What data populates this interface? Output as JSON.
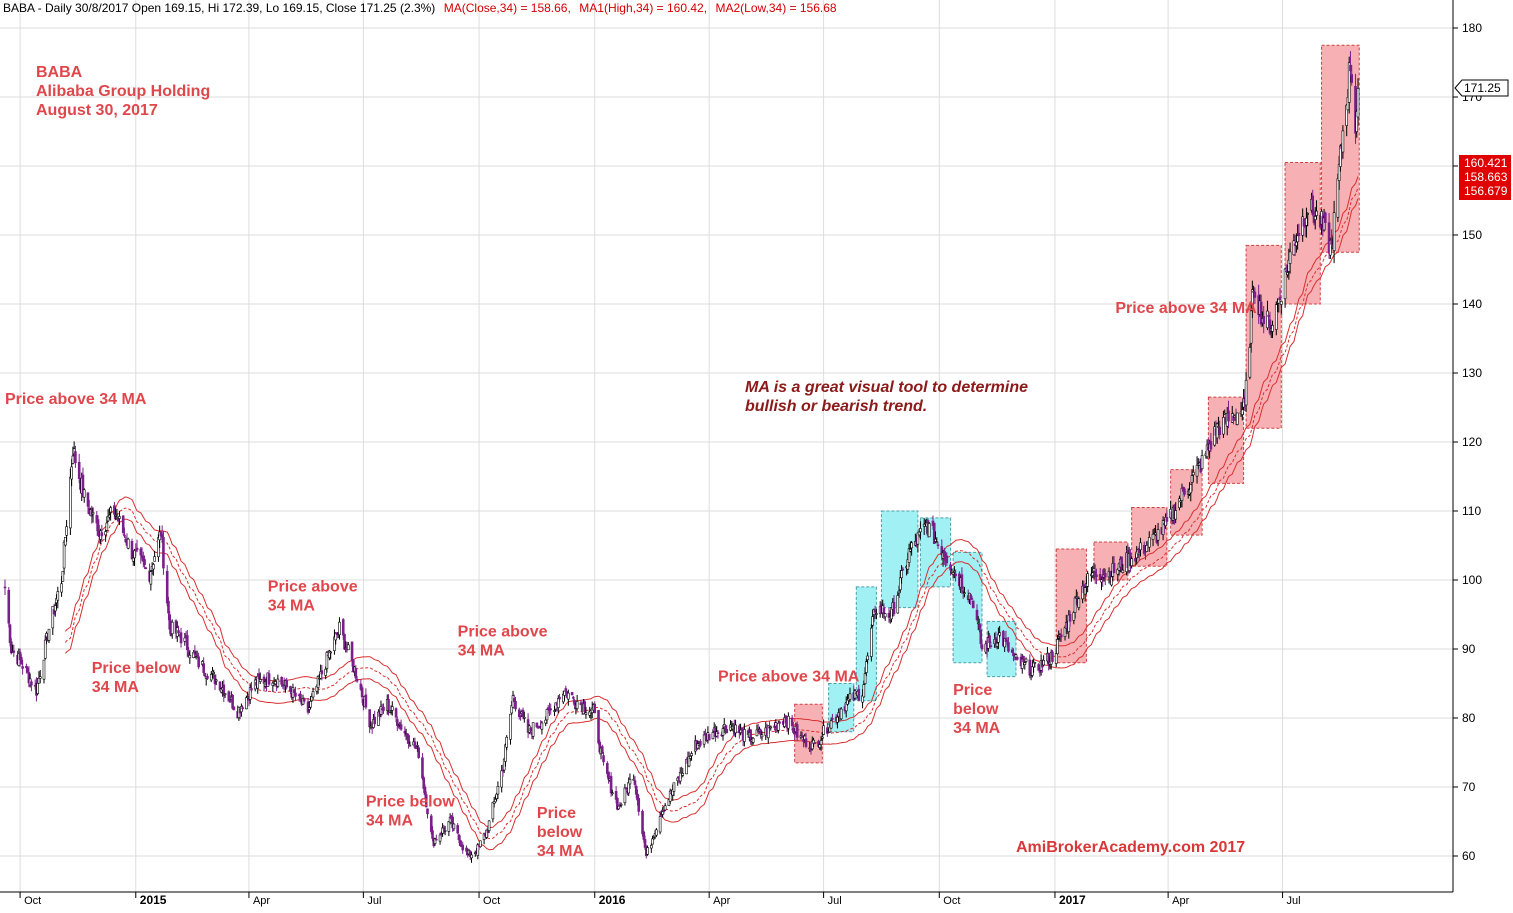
{
  "header": {
    "prefix": "BABA - Daily 30/8/2017 Open 169.15, Hi 172.39, Lo 169.15, Close 171.25 (2.3%)",
    "ma_text": "MA(Close,34) = 158.66,",
    "ma1_text": "MA1(High,34) = 160.42,",
    "ma2_text": "MA2(Low,34) = 156.68"
  },
  "title_block": {
    "line1": "BABA",
    "line2": "Alibaba Group Holding",
    "line3": "August 30, 2017"
  },
  "note": {
    "line1": "MA is a great visual tool to determine",
    "line2": "bullish or bearish trend."
  },
  "watermark": "AmiBrokerAcademy.com  2017",
  "badges": {
    "last_close": "171.25",
    "ma_high": "160.421",
    "ma_close": "158.663",
    "ma_low": "156.679"
  },
  "colors": {
    "candle_up": "#000000",
    "candle_down": "#7a1f8a",
    "ma_line": "#d83030",
    "uptrend_box": "#f7b0b4",
    "downtrend_box": "#a0f0f4",
    "annotation": "#e0474c",
    "badge_red": "#e00000",
    "grid": "#dddddd"
  },
  "chart_data": {
    "type": "candlestick",
    "symbol": "BABA",
    "interval": "Daily",
    "ylim": [
      55,
      182
    ],
    "y_ticks": [
      60,
      70,
      80,
      90,
      100,
      110,
      120,
      130,
      140,
      150,
      160,
      170,
      180
    ],
    "x_ticks": [
      {
        "label": "Oct",
        "date": "2014-10-01",
        "year": false
      },
      {
        "label": "2015",
        "date": "2015-01-01",
        "year": true
      },
      {
        "label": "Apr",
        "date": "2015-04-01",
        "year": false
      },
      {
        "label": "Jul",
        "date": "2015-07-01",
        "year": false
      },
      {
        "label": "Oct",
        "date": "2015-10-01",
        "year": false
      },
      {
        "label": "2016",
        "date": "2016-01-01",
        "year": true
      },
      {
        "label": "Apr",
        "date": "2016-04-01",
        "year": false
      },
      {
        "label": "Jul",
        "date": "2016-07-01",
        "year": false
      },
      {
        "label": "Oct",
        "date": "2016-10-01",
        "year": false
      },
      {
        "label": "2017",
        "date": "2017-01-01",
        "year": true
      },
      {
        "label": "Apr",
        "date": "2017-04-01",
        "year": false
      },
      {
        "label": "Jul",
        "date": "2017-07-01",
        "year": false
      }
    ],
    "x_range": [
      "2014-09-19",
      "2017-11-15"
    ],
    "price_path": [
      [
        "2014-09-19",
        99
      ],
      [
        "2014-09-24",
        90
      ],
      [
        "2014-10-02",
        88
      ],
      [
        "2014-10-14",
        84
      ],
      [
        "2014-10-24",
        93
      ],
      [
        "2014-11-03",
        100
      ],
      [
        "2014-11-12",
        119
      ],
      [
        "2014-11-21",
        112
      ],
      [
        "2014-12-03",
        107
      ],
      [
        "2014-12-15",
        110
      ],
      [
        "2014-12-29",
        104
      ],
      [
        "2015-01-12",
        101
      ],
      [
        "2015-01-21",
        107
      ],
      [
        "2015-01-28",
        93
      ],
      [
        "2015-02-05",
        92
      ],
      [
        "2015-02-20",
        88
      ],
      [
        "2015-03-09",
        85
      ],
      [
        "2015-03-23",
        81
      ],
      [
        "2015-04-06",
        85
      ],
      [
        "2015-04-20",
        86
      ],
      [
        "2015-05-04",
        84
      ],
      [
        "2015-05-18",
        81
      ],
      [
        "2015-06-01",
        88
      ],
      [
        "2015-06-12",
        93
      ],
      [
        "2015-06-26",
        86
      ],
      [
        "2015-07-07",
        79
      ],
      [
        "2015-07-20",
        82
      ],
      [
        "2015-08-03",
        78
      ],
      [
        "2015-08-14",
        75
      ],
      [
        "2015-08-25",
        62
      ],
      [
        "2015-09-08",
        65
      ],
      [
        "2015-09-22",
        60
      ],
      [
        "2015-09-30",
        61
      ],
      [
        "2015-10-08",
        64
      ],
      [
        "2015-10-20",
        73
      ],
      [
        "2015-10-28",
        83
      ],
      [
        "2015-11-09",
        78
      ],
      [
        "2015-11-23",
        80
      ],
      [
        "2015-12-07",
        84
      ],
      [
        "2015-12-21",
        82
      ],
      [
        "2015-12-31",
        81
      ],
      [
        "2016-01-08",
        73
      ],
      [
        "2016-01-20",
        67
      ],
      [
        "2016-02-01",
        72
      ],
      [
        "2016-02-11",
        60
      ],
      [
        "2016-02-22",
        66
      ],
      [
        "2016-03-07",
        71
      ],
      [
        "2016-03-21",
        76
      ],
      [
        "2016-04-04",
        78
      ],
      [
        "2016-04-18",
        79
      ],
      [
        "2016-05-02",
        77
      ],
      [
        "2016-05-16",
        78
      ],
      [
        "2016-05-31",
        80
      ],
      [
        "2016-06-13",
        77
      ],
      [
        "2016-06-24",
        76
      ],
      [
        "2016-07-05",
        79
      ],
      [
        "2016-07-18",
        82
      ],
      [
        "2016-08-01",
        84
      ],
      [
        "2016-08-11",
        96
      ],
      [
        "2016-08-24",
        95
      ],
      [
        "2016-09-07",
        104
      ],
      [
        "2016-09-21",
        108
      ],
      [
        "2016-10-05",
        104
      ],
      [
        "2016-10-14",
        101
      ],
      [
        "2016-10-28",
        97
      ],
      [
        "2016-11-04",
        90
      ],
      [
        "2016-11-18",
        92
      ],
      [
        "2016-12-02",
        88
      ],
      [
        "2016-12-16",
        87
      ],
      [
        "2016-12-30",
        89
      ],
      [
        "2017-01-09",
        93
      ],
      [
        "2017-01-20",
        98
      ],
      [
        "2017-01-31",
        101
      ],
      [
        "2017-02-14",
        101
      ],
      [
        "2017-03-01",
        103
      ],
      [
        "2017-03-15",
        105
      ],
      [
        "2017-03-31",
        108
      ],
      [
        "2017-04-14",
        113
      ],
      [
        "2017-04-28",
        117
      ],
      [
        "2017-05-10",
        122
      ],
      [
        "2017-05-24",
        124
      ],
      [
        "2017-06-01",
        125
      ],
      [
        "2017-06-08",
        143
      ],
      [
        "2017-06-15",
        138
      ],
      [
        "2017-06-22",
        137
      ],
      [
        "2017-06-30",
        142
      ],
      [
        "2017-07-10",
        149
      ],
      [
        "2017-07-21",
        154
      ],
      [
        "2017-07-31",
        152
      ],
      [
        "2017-08-09",
        148
      ],
      [
        "2017-08-18",
        165
      ],
      [
        "2017-08-24",
        175
      ],
      [
        "2017-08-28",
        166
      ],
      [
        "2017-08-30",
        171.25
      ]
    ],
    "ma_offsets": {
      "close": 0,
      "high": 1.6,
      "low": -1.6
    },
    "ma_periods": 34,
    "last": {
      "open": 169.15,
      "high": 172.39,
      "low": 169.15,
      "close": 171.25,
      "change_pct": 2.3
    },
    "ma_values": {
      "close": 158.66,
      "high": 160.42,
      "low": 156.68
    },
    "trend_boxes": [
      {
        "type": "up",
        "start": "2016-06-08",
        "end": "2016-06-30",
        "low": 73.5,
        "high": 82
      },
      {
        "type": "down",
        "start": "2016-07-05",
        "end": "2016-07-25",
        "low": 78,
        "high": 85
      },
      {
        "type": "down",
        "start": "2016-07-27",
        "end": "2016-08-12",
        "low": 82.5,
        "high": 99
      },
      {
        "type": "down",
        "start": "2016-08-16",
        "end": "2016-09-14",
        "low": 96,
        "high": 110
      },
      {
        "type": "down",
        "start": "2016-09-16",
        "end": "2016-10-10",
        "low": 99,
        "high": 109
      },
      {
        "type": "down",
        "start": "2016-10-12",
        "end": "2016-11-04",
        "low": 88,
        "high": 104
      },
      {
        "type": "down",
        "start": "2016-11-08",
        "end": "2016-12-01",
        "low": 86,
        "high": 94
      },
      {
        "type": "up",
        "start": "2017-01-02",
        "end": "2017-01-26",
        "low": 88,
        "high": 104.5
      },
      {
        "type": "up",
        "start": "2017-02-01",
        "end": "2017-02-28",
        "low": 100,
        "high": 105.5
      },
      {
        "type": "up",
        "start": "2017-03-03",
        "end": "2017-03-31",
        "low": 102,
        "high": 110.5
      },
      {
        "type": "up",
        "start": "2017-04-03",
        "end": "2017-04-28",
        "low": 106.5,
        "high": 116
      },
      {
        "type": "up",
        "start": "2017-05-03",
        "end": "2017-05-31",
        "low": 114,
        "high": 126.5
      },
      {
        "type": "up",
        "start": "2017-06-02",
        "end": "2017-06-30",
        "low": 122,
        "high": 148.5
      },
      {
        "type": "up",
        "start": "2017-07-03",
        "end": "2017-07-31",
        "low": 140,
        "high": 160.5
      },
      {
        "type": "up",
        "start": "2017-08-01",
        "end": "2017-08-31",
        "low": 147.5,
        "high": 177.5
      }
    ],
    "annotations": [
      {
        "lines": [
          "Price above 34 MA"
        ],
        "date": "2014-09-19",
        "price": 125.5
      },
      {
        "lines": [
          "Price below",
          "34 MA"
        ],
        "date": "2014-11-27",
        "price": 86.5
      },
      {
        "lines": [
          "Price above",
          "34 MA"
        ],
        "date": "2015-04-16",
        "price": 98.3
      },
      {
        "lines": [
          "Price below",
          "34 MA"
        ],
        "date": "2015-07-03",
        "price": 67.2
      },
      {
        "lines": [
          "Price above",
          "34 MA"
        ],
        "date": "2015-09-14",
        "price": 91.8
      },
      {
        "lines": [
          "Price",
          "below",
          "34 MA"
        ],
        "date": "2015-11-16",
        "price": 65.5
      },
      {
        "lines": [
          "Price above 34 MA"
        ],
        "date": "2016-04-08",
        "price": 85.3
      },
      {
        "lines": [
          "Price",
          "below",
          "34 MA"
        ],
        "date": "2016-10-12",
        "price": 83.3
      },
      {
        "lines": [
          "Price above 34 MA"
        ],
        "date": "2017-02-18",
        "price": 138.7
      }
    ]
  }
}
